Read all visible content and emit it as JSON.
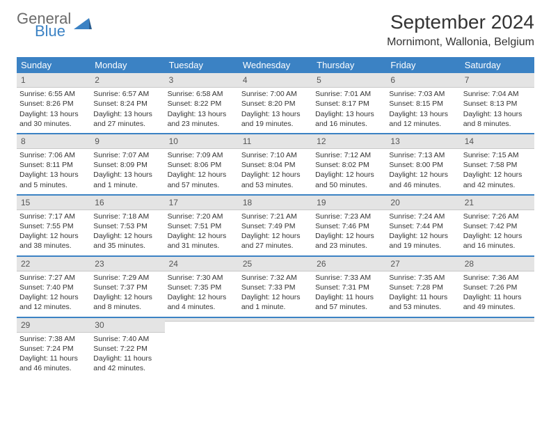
{
  "brand": {
    "line1": "General",
    "line2": "Blue"
  },
  "title": "September 2024",
  "location": "Mornimont, Wallonia, Belgium",
  "colors": {
    "accent": "#3b82c4",
    "dayNumBg": "#e4e4e4",
    "text": "#333333"
  },
  "dayHeaders": [
    "Sunday",
    "Monday",
    "Tuesday",
    "Wednesday",
    "Thursday",
    "Friday",
    "Saturday"
  ],
  "weeks": [
    [
      {
        "n": "1",
        "sunrise": "6:55 AM",
        "sunset": "8:26 PM",
        "daylight": "13 hours and 30 minutes."
      },
      {
        "n": "2",
        "sunrise": "6:57 AM",
        "sunset": "8:24 PM",
        "daylight": "13 hours and 27 minutes."
      },
      {
        "n": "3",
        "sunrise": "6:58 AM",
        "sunset": "8:22 PM",
        "daylight": "13 hours and 23 minutes."
      },
      {
        "n": "4",
        "sunrise": "7:00 AM",
        "sunset": "8:20 PM",
        "daylight": "13 hours and 19 minutes."
      },
      {
        "n": "5",
        "sunrise": "7:01 AM",
        "sunset": "8:17 PM",
        "daylight": "13 hours and 16 minutes."
      },
      {
        "n": "6",
        "sunrise": "7:03 AM",
        "sunset": "8:15 PM",
        "daylight": "13 hours and 12 minutes."
      },
      {
        "n": "7",
        "sunrise": "7:04 AM",
        "sunset": "8:13 PM",
        "daylight": "13 hours and 8 minutes."
      }
    ],
    [
      {
        "n": "8",
        "sunrise": "7:06 AM",
        "sunset": "8:11 PM",
        "daylight": "13 hours and 5 minutes."
      },
      {
        "n": "9",
        "sunrise": "7:07 AM",
        "sunset": "8:09 PM",
        "daylight": "13 hours and 1 minute."
      },
      {
        "n": "10",
        "sunrise": "7:09 AM",
        "sunset": "8:06 PM",
        "daylight": "12 hours and 57 minutes."
      },
      {
        "n": "11",
        "sunrise": "7:10 AM",
        "sunset": "8:04 PM",
        "daylight": "12 hours and 53 minutes."
      },
      {
        "n": "12",
        "sunrise": "7:12 AM",
        "sunset": "8:02 PM",
        "daylight": "12 hours and 50 minutes."
      },
      {
        "n": "13",
        "sunrise": "7:13 AM",
        "sunset": "8:00 PM",
        "daylight": "12 hours and 46 minutes."
      },
      {
        "n": "14",
        "sunrise": "7:15 AM",
        "sunset": "7:58 PM",
        "daylight": "12 hours and 42 minutes."
      }
    ],
    [
      {
        "n": "15",
        "sunrise": "7:17 AM",
        "sunset": "7:55 PM",
        "daylight": "12 hours and 38 minutes."
      },
      {
        "n": "16",
        "sunrise": "7:18 AM",
        "sunset": "7:53 PM",
        "daylight": "12 hours and 35 minutes."
      },
      {
        "n": "17",
        "sunrise": "7:20 AM",
        "sunset": "7:51 PM",
        "daylight": "12 hours and 31 minutes."
      },
      {
        "n": "18",
        "sunrise": "7:21 AM",
        "sunset": "7:49 PM",
        "daylight": "12 hours and 27 minutes."
      },
      {
        "n": "19",
        "sunrise": "7:23 AM",
        "sunset": "7:46 PM",
        "daylight": "12 hours and 23 minutes."
      },
      {
        "n": "20",
        "sunrise": "7:24 AM",
        "sunset": "7:44 PM",
        "daylight": "12 hours and 19 minutes."
      },
      {
        "n": "21",
        "sunrise": "7:26 AM",
        "sunset": "7:42 PM",
        "daylight": "12 hours and 16 minutes."
      }
    ],
    [
      {
        "n": "22",
        "sunrise": "7:27 AM",
        "sunset": "7:40 PM",
        "daylight": "12 hours and 12 minutes."
      },
      {
        "n": "23",
        "sunrise": "7:29 AM",
        "sunset": "7:37 PM",
        "daylight": "12 hours and 8 minutes."
      },
      {
        "n": "24",
        "sunrise": "7:30 AM",
        "sunset": "7:35 PM",
        "daylight": "12 hours and 4 minutes."
      },
      {
        "n": "25",
        "sunrise": "7:32 AM",
        "sunset": "7:33 PM",
        "daylight": "12 hours and 1 minute."
      },
      {
        "n": "26",
        "sunrise": "7:33 AM",
        "sunset": "7:31 PM",
        "daylight": "11 hours and 57 minutes."
      },
      {
        "n": "27",
        "sunrise": "7:35 AM",
        "sunset": "7:28 PM",
        "daylight": "11 hours and 53 minutes."
      },
      {
        "n": "28",
        "sunrise": "7:36 AM",
        "sunset": "7:26 PM",
        "daylight": "11 hours and 49 minutes."
      }
    ],
    [
      {
        "n": "29",
        "sunrise": "7:38 AM",
        "sunset": "7:24 PM",
        "daylight": "11 hours and 46 minutes."
      },
      {
        "n": "30",
        "sunrise": "7:40 AM",
        "sunset": "7:22 PM",
        "daylight": "11 hours and 42 minutes."
      },
      {
        "empty": true
      },
      {
        "empty": true
      },
      {
        "empty": true
      },
      {
        "empty": true
      },
      {
        "empty": true
      }
    ]
  ],
  "labels": {
    "sunrise": "Sunrise:",
    "sunset": "Sunset:",
    "daylight": "Daylight:"
  }
}
